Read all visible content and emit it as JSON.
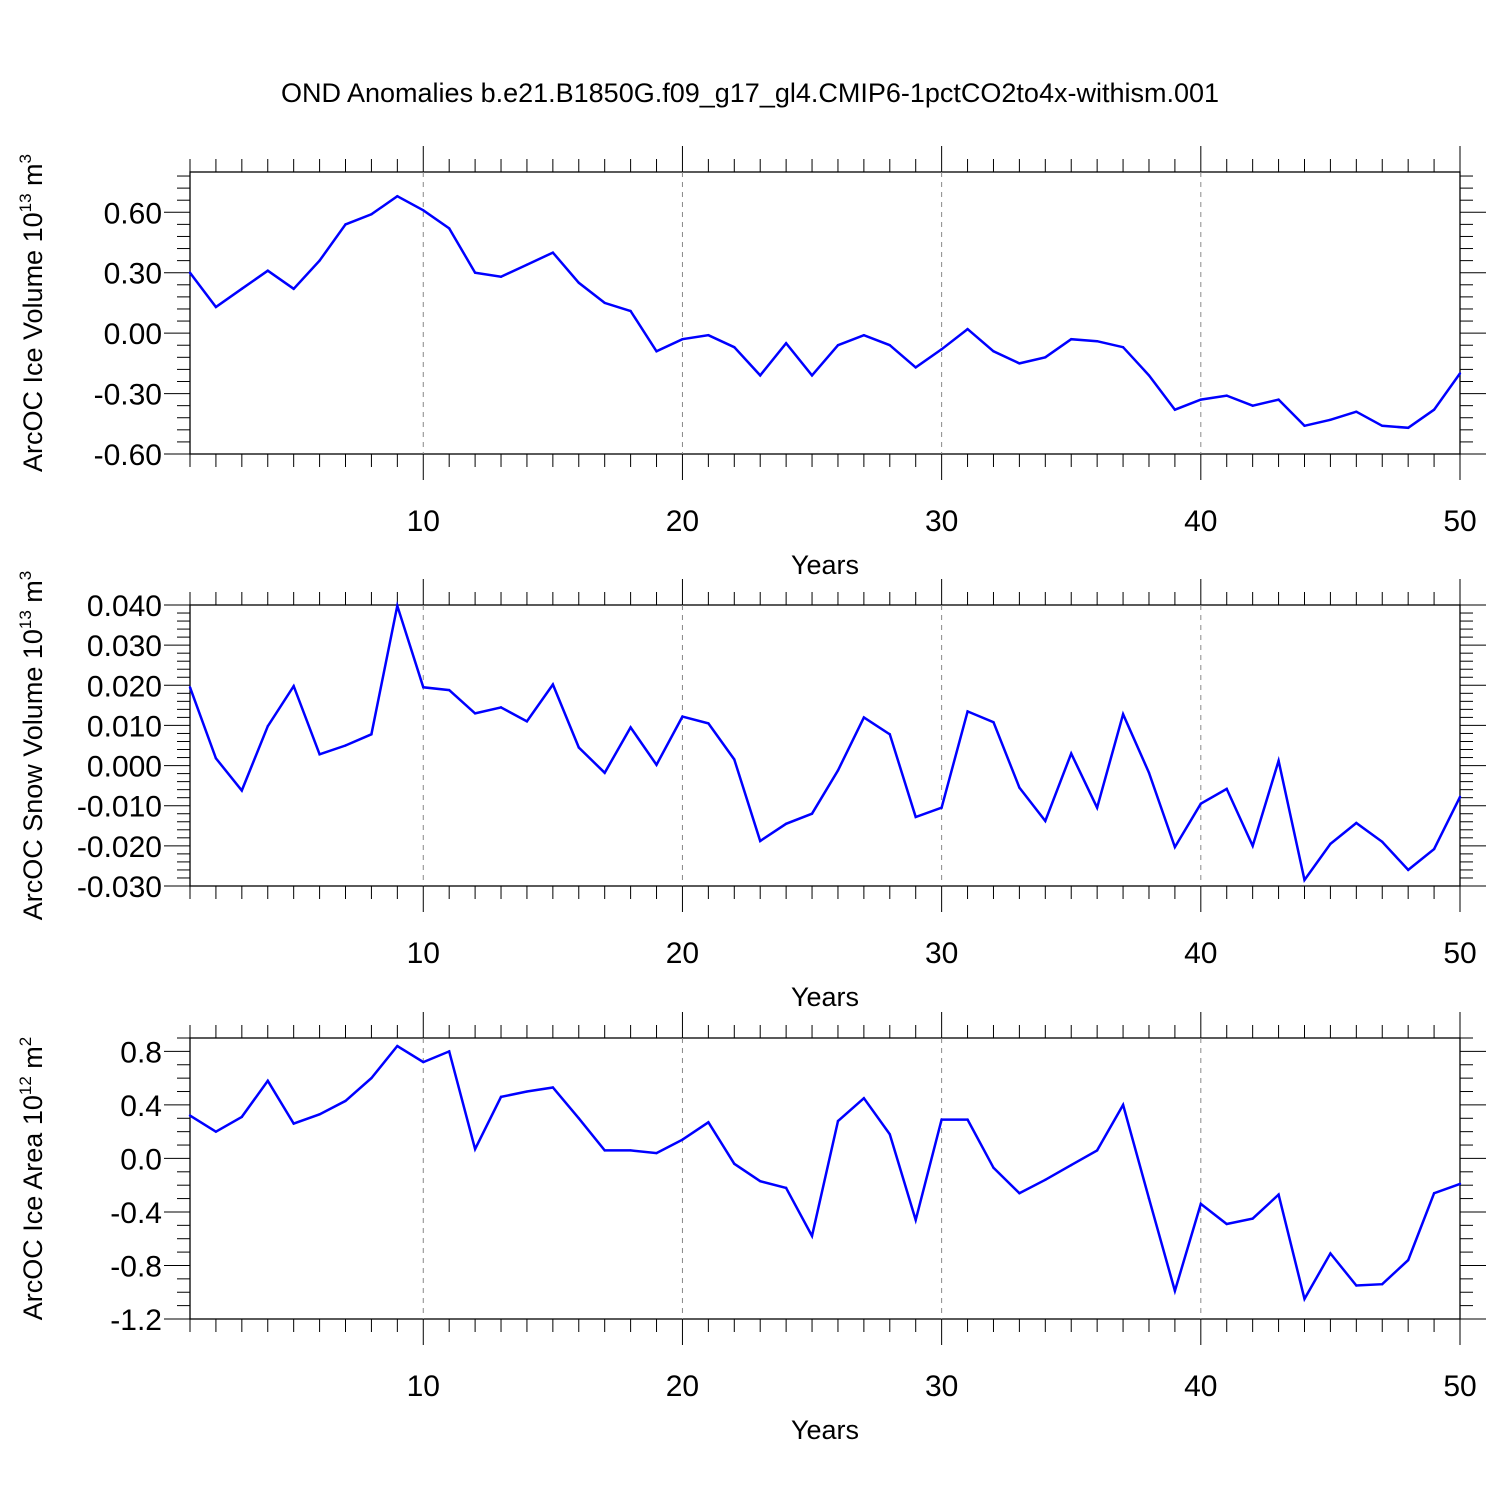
{
  "title": "OND Anomalies b.e21.B1850G.f09_g17_gl4.CMIP6-1pctCO2to4x-withism.001",
  "line_color": "#0000ff",
  "grid_color": "#888888",
  "chart_data": [
    {
      "type": "line",
      "ylabel_main": "ArcOC Ice Volume 10",
      "ylabel_sup": "13",
      "ylabel_unit": "m",
      "ylabel_unit_sup": "3",
      "xlabel": "Years",
      "xlim": [
        1,
        50
      ],
      "ylim": [
        -0.6,
        0.8
      ],
      "yticks": [
        "0.60",
        "0.30",
        "0.00",
        "-0.30",
        "-0.60"
      ],
      "ytick_values": [
        0.6,
        0.3,
        0.0,
        -0.3,
        -0.6
      ],
      "ymin_minor_step": 0.06,
      "xticks": [
        "10",
        "20",
        "30",
        "40",
        "50"
      ],
      "xtick_values": [
        10,
        20,
        30,
        40,
        50
      ],
      "grid_x": [
        10,
        20,
        30,
        40
      ],
      "x": [
        1,
        2,
        3,
        4,
        5,
        6,
        7,
        8,
        9,
        10,
        11,
        12,
        13,
        14,
        15,
        16,
        17,
        18,
        19,
        20,
        21,
        22,
        23,
        24,
        25,
        26,
        27,
        28,
        29,
        30,
        31,
        32,
        33,
        34,
        35,
        36,
        37,
        38,
        39,
        40,
        41,
        42,
        43,
        44,
        45,
        46,
        47,
        48,
        49,
        50
      ],
      "values": [
        0.3,
        0.13,
        0.22,
        0.31,
        0.22,
        0.36,
        0.54,
        0.59,
        0.68,
        0.61,
        0.52,
        0.3,
        0.28,
        0.34,
        0.4,
        0.25,
        0.15,
        0.11,
        -0.09,
        -0.03,
        -0.01,
        -0.07,
        -0.21,
        -0.05,
        -0.21,
        -0.06,
        -0.01,
        -0.06,
        -0.17,
        -0.08,
        0.02,
        -0.09,
        -0.15,
        -0.12,
        -0.03,
        -0.04,
        -0.07,
        -0.21,
        -0.38,
        -0.33,
        -0.31,
        -0.36,
        -0.33,
        -0.46,
        -0.43,
        -0.39,
        -0.46,
        -0.47,
        -0.38,
        -0.2
      ]
    },
    {
      "type": "line",
      "ylabel_main": "ArcOC Snow Volume 10",
      "ylabel_sup": "13",
      "ylabel_unit": "m",
      "ylabel_unit_sup": "3",
      "xlabel": "Years",
      "xlim": [
        1,
        50
      ],
      "ylim": [
        -0.03,
        0.04
      ],
      "yticks": [
        "0.040",
        "0.030",
        "0.020",
        "0.010",
        "0.000",
        "-0.010",
        "-0.020",
        "-0.030"
      ],
      "ytick_values": [
        0.04,
        0.03,
        0.02,
        0.01,
        0.0,
        -0.01,
        -0.02,
        -0.03
      ],
      "ymin_minor_step": 0.002,
      "xticks": [
        "10",
        "20",
        "30",
        "40",
        "50"
      ],
      "xtick_values": [
        10,
        20,
        30,
        40,
        50
      ],
      "grid_x": [
        10,
        20,
        30,
        40
      ],
      "x": [
        1,
        2,
        3,
        4,
        5,
        6,
        7,
        8,
        9,
        10,
        11,
        12,
        13,
        14,
        15,
        16,
        17,
        18,
        19,
        20,
        21,
        22,
        23,
        24,
        25,
        26,
        27,
        28,
        29,
        30,
        31,
        32,
        33,
        34,
        35,
        36,
        37,
        38,
        39,
        40,
        41,
        42,
        43,
        44,
        45,
        46,
        47,
        48,
        49,
        50
      ],
      "values": [
        0.0195,
        0.0018,
        -0.0062,
        0.0098,
        0.0198,
        0.0028,
        0.005,
        0.0078,
        0.0398,
        0.0195,
        0.0188,
        0.013,
        0.0145,
        0.011,
        0.0202,
        0.0045,
        -0.0018,
        0.0095,
        0.0002,
        0.0122,
        0.0105,
        0.0015,
        -0.0188,
        -0.0145,
        -0.012,
        -0.0012,
        0.012,
        0.0078,
        -0.0128,
        -0.0105,
        0.0135,
        0.0108,
        -0.0055,
        -0.0138,
        0.003,
        -0.0105,
        0.0128,
        -0.0018,
        -0.0203,
        -0.0095,
        -0.0058,
        -0.02,
        0.0012,
        -0.0285,
        -0.0195,
        -0.0143,
        -0.019,
        -0.026,
        -0.0208,
        -0.0078
      ]
    },
    {
      "type": "line",
      "ylabel_main": "ArcOC Ice Area 10",
      "ylabel_sup": "12",
      "ylabel_unit": "m",
      "ylabel_unit_sup": "2",
      "xlabel": "Years",
      "xlim": [
        1,
        50
      ],
      "ylim": [
        -1.2,
        0.9
      ],
      "yticks": [
        "0.8",
        "0.4",
        "0.0",
        "-0.4",
        "-0.8",
        "-1.2"
      ],
      "ytick_values": [
        0.8,
        0.4,
        0.0,
        -0.4,
        -0.8,
        -1.2
      ],
      "ymin_minor_step": 0.1,
      "xticks": [
        "10",
        "20",
        "30",
        "40",
        "50"
      ],
      "xtick_values": [
        10,
        20,
        30,
        40,
        50
      ],
      "grid_x": [
        10,
        20,
        30,
        40
      ],
      "x": [
        1,
        2,
        3,
        4,
        5,
        6,
        7,
        8,
        9,
        10,
        11,
        12,
        13,
        14,
        15,
        16,
        17,
        18,
        19,
        20,
        21,
        22,
        23,
        24,
        25,
        26,
        27,
        28,
        29,
        30,
        31,
        32,
        33,
        34,
        35,
        36,
        37,
        38,
        39,
        40,
        41,
        42,
        43,
        44,
        45,
        46,
        47,
        48,
        49,
        50
      ],
      "values": [
        0.32,
        0.2,
        0.31,
        0.58,
        0.26,
        0.33,
        0.43,
        0.6,
        0.84,
        0.72,
        0.8,
        0.07,
        0.46,
        0.5,
        0.53,
        0.3,
        0.06,
        0.06,
        0.04,
        0.14,
        0.27,
        -0.04,
        -0.17,
        -0.22,
        -0.58,
        0.28,
        0.45,
        0.18,
        -0.46,
        0.29,
        0.29,
        -0.07,
        -0.26,
        -0.16,
        -0.05,
        0.06,
        0.4,
        -0.3,
        -0.99,
        -0.34,
        -0.49,
        -0.45,
        -0.27,
        -1.05,
        -0.71,
        -0.95,
        -0.94,
        -0.76,
        -0.26,
        -0.19
      ]
    }
  ]
}
